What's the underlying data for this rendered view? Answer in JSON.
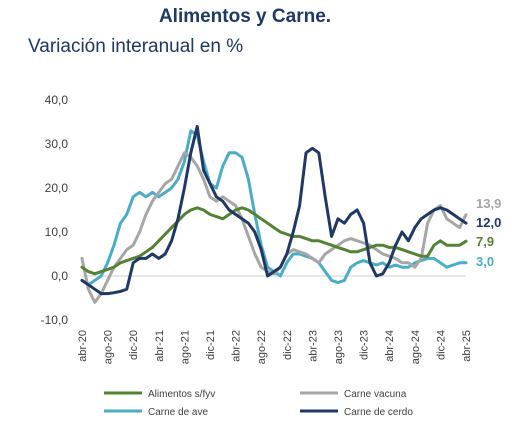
{
  "chart_data": {
    "type": "line",
    "title": "Alimentos y Carne.",
    "subtitle": "Variación interanual en %",
    "ylim": [
      -10,
      40
    ],
    "yticks": [
      -10,
      0,
      10,
      20,
      30,
      40
    ],
    "ytick_labels": [
      "-10,0",
      "0,0",
      "10,0",
      "20,0",
      "30,0",
      "40,0"
    ],
    "x_labels": [
      "abr-20",
      "ago-20",
      "dic-20",
      "abr-21",
      "ago-21",
      "dic-21",
      "abr-22",
      "ago-22",
      "dic-22",
      "abr-23",
      "ago-23",
      "dic-23",
      "abr-24",
      "ago-24",
      "dic-24",
      "abr-25"
    ],
    "x_start": "2020-04",
    "x_end": "2025-04",
    "legend_position": "bottom",
    "grid": false,
    "series": [
      {
        "name": "Alimentos s/fyv",
        "color": "#548235",
        "end_label": "7,9",
        "values": [
          2.0,
          1.0,
          0.5,
          1.0,
          1.5,
          2.0,
          3.0,
          3.5,
          4.0,
          4.5,
          5.5,
          6.5,
          8.0,
          9.5,
          11.0,
          12.5,
          14.0,
          15.0,
          15.5,
          15.0,
          14.0,
          13.5,
          13.0,
          14.0,
          15.0,
          15.5,
          15.0,
          14.0,
          13.0,
          12.0,
          11.0,
          10.0,
          9.5,
          9.0,
          9.0,
          8.5,
          8.0,
          8.0,
          7.5,
          7.0,
          6.5,
          6.0,
          5.5,
          5.5,
          6.0,
          6.5,
          7.0,
          7.0,
          6.5,
          6.5,
          6.0,
          5.5,
          5.0,
          4.5,
          4.5,
          7.0,
          8.0,
          7.0,
          7.0,
          7.0,
          7.9
        ]
      },
      {
        "name": "Carne vacuna",
        "color": "#a6a6a6",
        "end_label": "13,9",
        "values": [
          4.0,
          -3.0,
          -6.0,
          -4.0,
          -1.0,
          2.0,
          4.0,
          6.0,
          7.0,
          10.0,
          14.0,
          17.0,
          19.0,
          21.0,
          22.0,
          25.0,
          28.0,
          27.0,
          25.0,
          22.0,
          18.0,
          17.0,
          18.0,
          17.0,
          16.0,
          13.0,
          9.0,
          5.0,
          2.0,
          1.0,
          0.5,
          2.0,
          5.0,
          6.0,
          5.5,
          5.0,
          4.0,
          3.0,
          5.0,
          6.0,
          7.0,
          8.0,
          8.5,
          8.0,
          7.5,
          7.0,
          6.0,
          5.0,
          4.5,
          4.0,
          3.0,
          3.0,
          2.0,
          4.0,
          12.0,
          15.0,
          16.0,
          13.0,
          12.0,
          11.0,
          13.9
        ]
      },
      {
        "name": "Carne de ave",
        "color": "#4bacc6",
        "end_label": "3,0",
        "values": [
          -1.0,
          -2.0,
          -1.0,
          0.0,
          3.0,
          7.0,
          12.0,
          14.0,
          18.0,
          19.0,
          18.0,
          19.0,
          18.0,
          19.0,
          20.0,
          22.0,
          26.0,
          33.0,
          32.0,
          26.0,
          21.0,
          20.0,
          25.0,
          28.0,
          28.0,
          27.0,
          22.0,
          14.0,
          7.0,
          2.0,
          1.0,
          0.0,
          3.0,
          5.0,
          5.0,
          4.5,
          4.0,
          3.0,
          1.0,
          -1.0,
          -1.5,
          -1.0,
          2.0,
          3.0,
          3.5,
          3.0,
          2.5,
          3.0,
          2.0,
          2.5,
          2.0,
          2.0,
          3.0,
          3.5,
          4.0,
          4.0,
          3.0,
          2.0,
          2.5,
          3.0,
          3.0
        ]
      },
      {
        "name": "Carne de cerdo",
        "color": "#1f3864",
        "end_label": "12,0",
        "values": [
          -1.0,
          -2.0,
          -3.0,
          -4.0,
          -4.0,
          -3.8,
          -3.5,
          -3.0,
          3.0,
          4.0,
          4.0,
          5.0,
          4.0,
          5.0,
          8.0,
          13.0,
          20.0,
          28.0,
          34.0,
          24.0,
          21.0,
          18.0,
          17.0,
          15.0,
          14.0,
          13.0,
          12.0,
          10.0,
          6.0,
          0.0,
          1.0,
          2.0,
          5.0,
          10.0,
          16.0,
          28.0,
          29.0,
          28.0,
          18.0,
          9.0,
          13.0,
          12.0,
          14.0,
          15.0,
          12.0,
          3.0,
          0.0,
          0.5,
          3.0,
          7.0,
          10.0,
          8.0,
          11.0,
          13.0,
          14.0,
          15.0,
          15.5,
          15.0,
          14.0,
          13.0,
          12.0
        ]
      }
    ]
  }
}
